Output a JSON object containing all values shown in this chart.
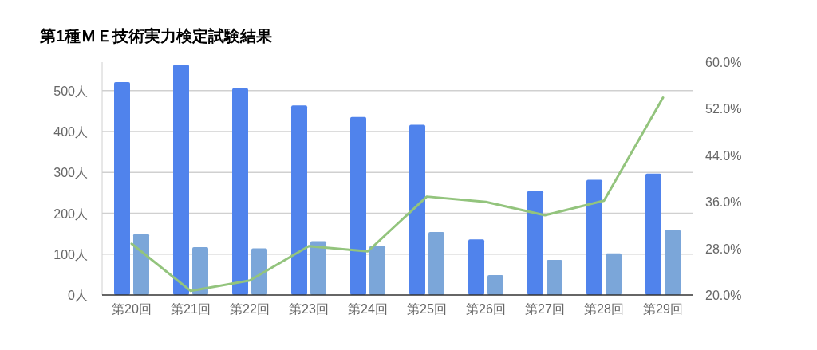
{
  "chart_data": {
    "type": "bar",
    "title": "第1種ＭＥ技術実力検定試験結果",
    "categories": [
      "第20回",
      "第21回",
      "第22回",
      "第23回",
      "第24回",
      "第25回",
      "第26回",
      "第27回",
      "第28回",
      "第29回"
    ],
    "series": [
      {
        "color": "#5083ec",
        "values": [
          521,
          564,
          506,
          464,
          436,
          417,
          136,
          255,
          282,
          297
        ]
      },
      {
        "color": "#7ba6d9",
        "values": [
          150,
          117,
          114,
          132,
          120,
          154,
          49,
          86,
          102,
          160
        ]
      },
      {
        "type": "line",
        "axis": "y2",
        "color": "#93c47d",
        "values": [
          28.8,
          20.7,
          22.5,
          28.4,
          27.5,
          36.9,
          36.0,
          33.7,
          36.2,
          53.9
        ]
      }
    ],
    "ylim": [
      0,
      570
    ],
    "yticks": [
      {
        "value": 0,
        "label": "0人"
      },
      {
        "value": 100,
        "label": "100人"
      },
      {
        "value": 200,
        "label": "200人"
      },
      {
        "value": 300,
        "label": "300人"
      },
      {
        "value": 400,
        "label": "400人"
      },
      {
        "value": 500,
        "label": "500人"
      }
    ],
    "y2lim": [
      20,
      60
    ],
    "y2ticks": [
      {
        "value": 20,
        "label": "20.0%"
      },
      {
        "value": 28,
        "label": "28.0%"
      },
      {
        "value": 36,
        "label": "36.0%"
      },
      {
        "value": 44,
        "label": "44.0%"
      },
      {
        "value": 52,
        "label": "52.0%"
      },
      {
        "value": 60,
        "label": "60.0%"
      }
    ],
    "grid": "y"
  }
}
